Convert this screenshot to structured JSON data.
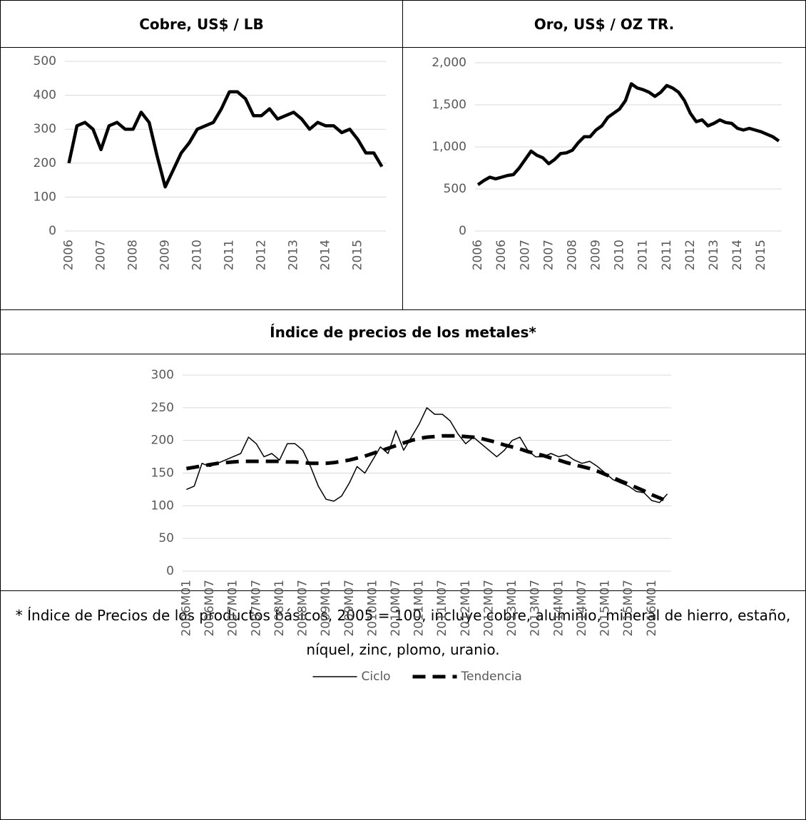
{
  "chart_data": [
    {
      "type": "line",
      "title": "Cobre, US$ / LB",
      "categories": [
        "2006",
        null,
        null,
        null,
        "2007",
        null,
        null,
        null,
        "2008",
        null,
        null,
        null,
        "2009",
        null,
        null,
        null,
        "2010",
        null,
        null,
        null,
        "2011",
        null,
        null,
        null,
        "2012",
        null,
        null,
        null,
        "2013",
        null,
        null,
        null,
        "2014",
        null,
        null,
        null,
        "2015",
        null,
        null,
        null
      ],
      "values": [
        200,
        310,
        320,
        300,
        240,
        310,
        320,
        300,
        300,
        350,
        320,
        220,
        130,
        180,
        230,
        260,
        300,
        310,
        320,
        360,
        410,
        410,
        390,
        340,
        340,
        360,
        330,
        340,
        350,
        330,
        300,
        320,
        310,
        310,
        290,
        300,
        270,
        230,
        230,
        190
      ],
      "color": "#000000",
      "ylim": [
        0,
        500
      ],
      "yticks": [
        0,
        100,
        200,
        300,
        400,
        500
      ],
      "grid": true
    },
    {
      "type": "line",
      "title": "Oro, US$ / OZ TR.",
      "categories": [
        "2006",
        null,
        null,
        null,
        "2006",
        null,
        null,
        null,
        "2007",
        null,
        null,
        null,
        "2007",
        null,
        null,
        null,
        "2008",
        null,
        null,
        null,
        "2009",
        null,
        null,
        null,
        "2010",
        null,
        null,
        null,
        "2011",
        null,
        null,
        null,
        "2011",
        null,
        null,
        null,
        "2012",
        null,
        null,
        null,
        "2013",
        null,
        null,
        null,
        "2014",
        null,
        null,
        null,
        "2015",
        null,
        null,
        null
      ],
      "values": [
        550,
        600,
        640,
        620,
        640,
        660,
        670,
        750,
        850,
        950,
        900,
        870,
        800,
        850,
        920,
        930,
        960,
        1050,
        1120,
        1120,
        1200,
        1250,
        1350,
        1400,
        1450,
        1550,
        1750,
        1700,
        1680,
        1650,
        1600,
        1650,
        1730,
        1700,
        1650,
        1550,
        1400,
        1300,
        1320,
        1250,
        1280,
        1320,
        1290,
        1280,
        1220,
        1200,
        1220,
        1200,
        1180,
        1150,
        1120,
        1070
      ],
      "color": "#000000",
      "ylim": [
        0,
        2000
      ],
      "yticks": [
        0,
        500,
        {
          "value": 1000,
          "label": "1,000"
        },
        {
          "value": 1500,
          "label": "1,500"
        },
        {
          "value": 2000,
          "label": "2,000"
        }
      ],
      "grid": true
    },
    {
      "type": "line",
      "title": "Índice de precios de los metales*",
      "categories": [
        "2006M01",
        null,
        null,
        "2006M07",
        null,
        null,
        "2007M01",
        null,
        null,
        "2007M07",
        null,
        null,
        "2008M01",
        null,
        null,
        "2008M07",
        null,
        null,
        "2009M01",
        null,
        null,
        "2009M07",
        null,
        null,
        "2010M01",
        null,
        null,
        "2010M07",
        null,
        null,
        "2011M01",
        null,
        null,
        "2011M07",
        null,
        null,
        "2012M01",
        null,
        null,
        "2012M07",
        null,
        null,
        "2013M01",
        null,
        null,
        "2013M07",
        null,
        null,
        "2014M01",
        null,
        null,
        "2014M07",
        null,
        null,
        "2015M01",
        null,
        null,
        "2015M07",
        null,
        null,
        "2016M01",
        null,
        null
      ],
      "series": [
        {
          "name": "Ciclo",
          "color": "#000000",
          "line_style": "solid",
          "values": [
            125,
            130,
            165,
            160,
            165,
            170,
            175,
            180,
            205,
            195,
            175,
            180,
            170,
            195,
            195,
            185,
            160,
            130,
            110,
            107,
            115,
            135,
            160,
            150,
            170,
            190,
            180,
            215,
            185,
            205,
            225,
            250,
            240,
            240,
            230,
            210,
            195,
            205,
            195,
            185,
            175,
            185,
            200,
            205,
            185,
            175,
            175,
            180,
            175,
            178,
            170,
            165,
            168,
            160,
            150,
            140,
            135,
            130,
            122,
            120,
            108,
            105,
            118
          ]
        },
        {
          "name": "Tendencia",
          "color": "#000000",
          "line_style": "dashed",
          "values": [
            157,
            159,
            161,
            163,
            165,
            166,
            167,
            168,
            168,
            168,
            168,
            168,
            168,
            167,
            167,
            166,
            165,
            165,
            165,
            166,
            168,
            170,
            173,
            176,
            180,
            184,
            188,
            192,
            196,
            200,
            203,
            205,
            206,
            207,
            207,
            207,
            206,
            205,
            203,
            200,
            197,
            193,
            190,
            187,
            183,
            180,
            177,
            173,
            170,
            166,
            163,
            160,
            157,
            153,
            148,
            143,
            138,
            133,
            128,
            123,
            117,
            112,
            107
          ]
        }
      ],
      "ylim": [
        0,
        300
      ],
      "yticks": [
        0,
        50,
        100,
        150,
        200,
        250,
        300
      ],
      "grid": true,
      "legend": "bottom"
    }
  ],
  "footnote": "* Índice de Precios de los productos básicos, 2005 = 100, incluye cobre, aluminio, mineral de hierro, estaño, níquel, zinc, plomo, uranio."
}
